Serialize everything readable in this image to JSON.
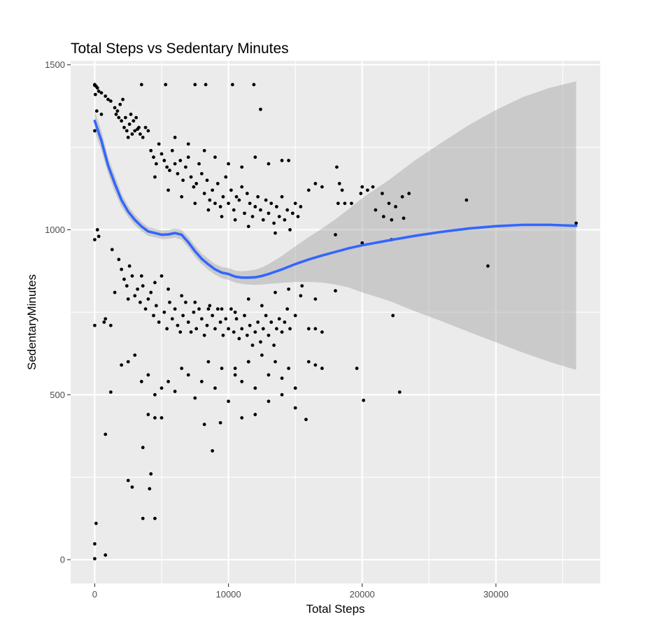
{
  "chart_data": {
    "type": "scatter",
    "title": "Total Steps vs Sedentary Minutes",
    "xlabel": "Total Steps",
    "ylabel": "SedentaryMinutes",
    "xlim": [
      -1800,
      37800
    ],
    "ylim": [
      -72,
      1512
    ],
    "x_ticks": [
      0,
      10000,
      20000,
      30000
    ],
    "x_tick_labels": [
      "0",
      "10000",
      "20000",
      "30000"
    ],
    "y_ticks": [
      0,
      500,
      1000,
      1500
    ],
    "y_tick_labels": [
      "0",
      "500",
      "1000",
      "1500"
    ],
    "grid": true,
    "legend": "none",
    "colors": {
      "panel": "#ebebeb",
      "grid": "#ffffff",
      "points": "#000000",
      "smooth_line": "#3366ff",
      "confidence_band": "#999999"
    },
    "points_note": "Individual daily observations (approx. 940 points) distributed in the plot; positions below are representative samples read off the figure.",
    "points": [
      [
        0,
        1440
      ],
      [
        0,
        1438
      ],
      [
        100,
        1435
      ],
      [
        200,
        1430
      ],
      [
        50,
        1410
      ],
      [
        300,
        1420
      ],
      [
        500,
        1415
      ],
      [
        800,
        1405
      ],
      [
        1000,
        1395
      ],
      [
        1200,
        1390
      ],
      [
        150,
        1360
      ],
      [
        0,
        1300
      ],
      [
        500,
        1350
      ],
      [
        0,
        970
      ],
      [
        200,
        1000
      ],
      [
        300,
        980
      ],
      [
        0,
        710
      ],
      [
        700,
        720
      ],
      [
        800,
        730
      ],
      [
        1200,
        710
      ],
      [
        100,
        110
      ],
      [
        0,
        48
      ],
      [
        0,
        3
      ],
      [
        800,
        14
      ],
      [
        800,
        380
      ],
      [
        1200,
        508
      ],
      [
        1500,
        1370
      ],
      [
        1600,
        1350
      ],
      [
        1800,
        1340
      ],
      [
        2000,
        1330
      ],
      [
        2100,
        1395
      ],
      [
        2200,
        1310
      ],
      [
        2400,
        1300
      ],
      [
        2500,
        1280
      ],
      [
        2600,
        1320
      ],
      [
        2800,
        1290
      ],
      [
        3000,
        1300
      ],
      [
        3100,
        1340
      ],
      [
        3200,
        1305
      ],
      [
        3400,
        1290
      ],
      [
        3500,
        1440
      ],
      [
        3600,
        1280
      ],
      [
        3800,
        1310
      ],
      [
        4000,
        1300
      ],
      [
        1700,
        1360
      ],
      [
        1900,
        1380
      ],
      [
        2300,
        1340
      ],
      [
        2700,
        1350
      ],
      [
        2900,
        1330
      ],
      [
        3300,
        1310
      ],
      [
        4200,
        1240
      ],
      [
        4400,
        1220
      ],
      [
        4600,
        1200
      ],
      [
        4800,
        1260
      ],
      [
        5000,
        1230
      ],
      [
        5200,
        1210
      ],
      [
        5400,
        1190
      ],
      [
        5600,
        1180
      ],
      [
        5800,
        1240
      ],
      [
        6000,
        1200
      ],
      [
        6200,
        1170
      ],
      [
        6400,
        1210
      ],
      [
        6600,
        1150
      ],
      [
        6800,
        1190
      ],
      [
        7000,
        1220
      ],
      [
        7200,
        1160
      ],
      [
        7400,
        1130
      ],
      [
        7600,
        1140
      ],
      [
        7800,
        1200
      ],
      [
        8000,
        1170
      ],
      [
        8200,
        1110
      ],
      [
        8400,
        1150
      ],
      [
        8600,
        1090
      ],
      [
        8800,
        1120
      ],
      [
        9000,
        1080
      ],
      [
        9200,
        1140
      ],
      [
        9400,
        1070
      ],
      [
        9600,
        1100
      ],
      [
        9800,
        1160
      ],
      [
        10000,
        1080
      ],
      [
        10200,
        1120
      ],
      [
        10400,
        1060
      ],
      [
        10600,
        1100
      ],
      [
        10800,
        1090
      ],
      [
        11000,
        1130
      ],
      [
        11200,
        1050
      ],
      [
        11400,
        1110
      ],
      [
        11600,
        1080
      ],
      [
        11800,
        1040
      ],
      [
        12000,
        1070
      ],
      [
        12200,
        1100
      ],
      [
        12400,
        1060
      ],
      [
        12600,
        1030
      ],
      [
        12800,
        1090
      ],
      [
        13000,
        1050
      ],
      [
        13200,
        1080
      ],
      [
        13400,
        1020
      ],
      [
        13600,
        1070
      ],
      [
        13800,
        1040
      ],
      [
        14000,
        1100
      ],
      [
        14200,
        1030
      ],
      [
        14400,
        1060
      ],
      [
        14600,
        1000
      ],
      [
        14800,
        1050
      ],
      [
        15000,
        1080
      ],
      [
        15200,
        1040
      ],
      [
        15400,
        1070
      ],
      [
        16000,
        1120
      ],
      [
        16500,
        1140
      ],
      [
        17000,
        1130
      ],
      [
        5300,
        1440
      ],
      [
        7500,
        1440
      ],
      [
        8300,
        1440
      ],
      [
        10300,
        1440
      ],
      [
        11900,
        1440
      ],
      [
        12400,
        1365
      ],
      [
        6000,
        1280
      ],
      [
        7000,
        1260
      ],
      [
        8200,
        1240
      ],
      [
        9000,
        1220
      ],
      [
        10000,
        1200
      ],
      [
        11000,
        1190
      ],
      [
        12000,
        1220
      ],
      [
        13000,
        1200
      ],
      [
        14000,
        1210
      ],
      [
        14500,
        1210
      ],
      [
        4500,
        1160
      ],
      [
        5500,
        1120
      ],
      [
        6500,
        1100
      ],
      [
        7500,
        1080
      ],
      [
        8500,
        1060
      ],
      [
        9500,
        1040
      ],
      [
        10500,
        1030
      ],
      [
        11500,
        1010
      ],
      [
        13500,
        990
      ],
      [
        18100,
        1190
      ],
      [
        18300,
        1140
      ],
      [
        18500,
        1120
      ],
      [
        18200,
        1080
      ],
      [
        18700,
        1080
      ],
      [
        19200,
        1080
      ],
      [
        20000,
        1130
      ],
      [
        20800,
        1130
      ],
      [
        21500,
        1110
      ],
      [
        22000,
        1080
      ],
      [
        22500,
        1070
      ],
      [
        23000,
        1100
      ],
      [
        23500,
        1110
      ],
      [
        21000,
        1060
      ],
      [
        21600,
        1040
      ],
      [
        22200,
        1030
      ],
      [
        19900,
        1110
      ],
      [
        20400,
        1120
      ],
      [
        18000,
        985
      ],
      [
        20000,
        960
      ],
      [
        22200,
        970
      ],
      [
        23100,
        1035
      ],
      [
        27800,
        1090
      ],
      [
        36000,
        1020
      ],
      [
        29400,
        890
      ],
      [
        1300,
        940
      ],
      [
        1800,
        910
      ],
      [
        2000,
        880
      ],
      [
        2200,
        850
      ],
      [
        2400,
        830
      ],
      [
        2600,
        890
      ],
      [
        2800,
        860
      ],
      [
        3000,
        800
      ],
      [
        3200,
        820
      ],
      [
        3400,
        780
      ],
      [
        3600,
        830
      ],
      [
        3800,
        760
      ],
      [
        4000,
        790
      ],
      [
        4200,
        810
      ],
      [
        4400,
        740
      ],
      [
        4600,
        770
      ],
      [
        4800,
        720
      ],
      [
        5000,
        860
      ],
      [
        5200,
        750
      ],
      [
        5400,
        700
      ],
      [
        5600,
        780
      ],
      [
        5800,
        730
      ],
      [
        6000,
        760
      ],
      [
        6200,
        710
      ],
      [
        6400,
        690
      ],
      [
        6600,
        740
      ],
      [
        6800,
        780
      ],
      [
        7000,
        720
      ],
      [
        7200,
        690
      ],
      [
        7400,
        750
      ],
      [
        7600,
        700
      ],
      [
        7800,
        760
      ],
      [
        8000,
        730
      ],
      [
        8200,
        680
      ],
      [
        8400,
        710
      ],
      [
        8600,
        770
      ],
      [
        8800,
        740
      ],
      [
        9000,
        700
      ],
      [
        9200,
        760
      ],
      [
        9400,
        720
      ],
      [
        9600,
        680
      ],
      [
        9800,
        730
      ],
      [
        10000,
        700
      ],
      [
        10200,
        760
      ],
      [
        10400,
        690
      ],
      [
        10600,
        730
      ],
      [
        10800,
        670
      ],
      [
        11000,
        700
      ],
      [
        11200,
        740
      ],
      [
        11400,
        680
      ],
      [
        11600,
        710
      ],
      [
        11800,
        650
      ],
      [
        12000,
        690
      ],
      [
        12200,
        720
      ],
      [
        12400,
        660
      ],
      [
        12600,
        700
      ],
      [
        12800,
        740
      ],
      [
        13000,
        680
      ],
      [
        13200,
        720
      ],
      [
        13400,
        650
      ],
      [
        13600,
        700
      ],
      [
        13800,
        730
      ],
      [
        14000,
        690
      ],
      [
        14200,
        720
      ],
      [
        14400,
        760
      ],
      [
        14600,
        700
      ],
      [
        15000,
        740
      ],
      [
        15400,
        800
      ],
      [
        16000,
        700
      ],
      [
        16500,
        700
      ],
      [
        17000,
        690
      ],
      [
        1500,
        810
      ],
      [
        2500,
        790
      ],
      [
        3500,
        860
      ],
      [
        4500,
        840
      ],
      [
        5500,
        820
      ],
      [
        6500,
        800
      ],
      [
        7500,
        780
      ],
      [
        8500,
        760
      ],
      [
        9500,
        760
      ],
      [
        10500,
        750
      ],
      [
        11500,
        790
      ],
      [
        12500,
        770
      ],
      [
        13500,
        810
      ],
      [
        14500,
        820
      ],
      [
        15500,
        830
      ],
      [
        16500,
        790
      ],
      [
        2000,
        590
      ],
      [
        2500,
        600
      ],
      [
        3000,
        620
      ],
      [
        3500,
        540
      ],
      [
        4000,
        560
      ],
      [
        4500,
        500
      ],
      [
        5000,
        520
      ],
      [
        5500,
        540
      ],
      [
        6000,
        510
      ],
      [
        6500,
        580
      ],
      [
        7000,
        560
      ],
      [
        7500,
        490
      ],
      [
        8000,
        540
      ],
      [
        8500,
        600
      ],
      [
        9000,
        520
      ],
      [
        9500,
        580
      ],
      [
        10000,
        480
      ],
      [
        10500,
        560
      ],
      [
        11000,
        540
      ],
      [
        11500,
        600
      ],
      [
        12000,
        520
      ],
      [
        12500,
        620
      ],
      [
        13000,
        560
      ],
      [
        13500,
        600
      ],
      [
        14000,
        550
      ],
      [
        14500,
        580
      ],
      [
        15000,
        520
      ],
      [
        16000,
        600
      ],
      [
        16500,
        590
      ],
      [
        17000,
        580
      ],
      [
        19600,
        580
      ],
      [
        2500,
        240
      ],
      [
        2800,
        220
      ],
      [
        3600,
        340
      ],
      [
        4200,
        260
      ],
      [
        4100,
        215
      ],
      [
        3600,
        125
      ],
      [
        4500,
        125
      ],
      [
        4000,
        440
      ],
      [
        4500,
        430
      ],
      [
        5000,
        430
      ],
      [
        8200,
        410
      ],
      [
        8800,
        330
      ],
      [
        9400,
        415
      ],
      [
        11000,
        430
      ],
      [
        12000,
        440
      ],
      [
        13000,
        480
      ],
      [
        14000,
        500
      ],
      [
        15000,
        460
      ],
      [
        15800,
        425
      ],
      [
        20100,
        483
      ],
      [
        22800,
        508
      ],
      [
        22300,
        740
      ],
      [
        18000,
        815
      ],
      [
        10500,
        580
      ],
      [
        11500,
        600
      ]
    ],
    "smooth_series": {
      "name": "",
      "x": [
        0,
        500,
        1000,
        1500,
        2000,
        2500,
        3000,
        3500,
        4000,
        4500,
        5000,
        5500,
        6000,
        6500,
        7000,
        7500,
        8000,
        8500,
        9000,
        9500,
        10000,
        10500,
        11000,
        11500,
        12000,
        12500,
        13000,
        14000,
        15000,
        16000,
        17000,
        18000,
        19000,
        20000,
        22000,
        24000,
        26000,
        28000,
        30000,
        32000,
        34000,
        36000
      ],
      "y": [
        1330,
        1270,
        1195,
        1140,
        1090,
        1055,
        1030,
        1010,
        995,
        990,
        985,
        986,
        990,
        985,
        962,
        935,
        912,
        895,
        880,
        870,
        866,
        858,
        855,
        855,
        856,
        860,
        866,
        880,
        896,
        910,
        922,
        933,
        944,
        953,
        968,
        982,
        994,
        1004,
        1011,
        1015,
        1015,
        1012
      ],
      "lower": [
        1300,
        1240,
        1170,
        1115,
        1070,
        1038,
        1014,
        996,
        982,
        977,
        972,
        973,
        976,
        970,
        946,
        918,
        896,
        878,
        864,
        853,
        848,
        840,
        836,
        834,
        833,
        834,
        836,
        839,
        842,
        842,
        840,
        834,
        825,
        810,
        785,
        752,
        722,
        690,
        659,
        628,
        600,
        575
      ],
      "upper": [
        1360,
        1300,
        1220,
        1165,
        1110,
        1072,
        1046,
        1024,
        1008,
        1003,
        998,
        999,
        1004,
        1000,
        978,
        952,
        928,
        912,
        896,
        887,
        884,
        876,
        874,
        876,
        879,
        886,
        896,
        921,
        950,
        978,
        1004,
        1032,
        1063,
        1096,
        1151,
        1212,
        1266,
        1318,
        1363,
        1402,
        1430,
        1450
      ]
    }
  }
}
